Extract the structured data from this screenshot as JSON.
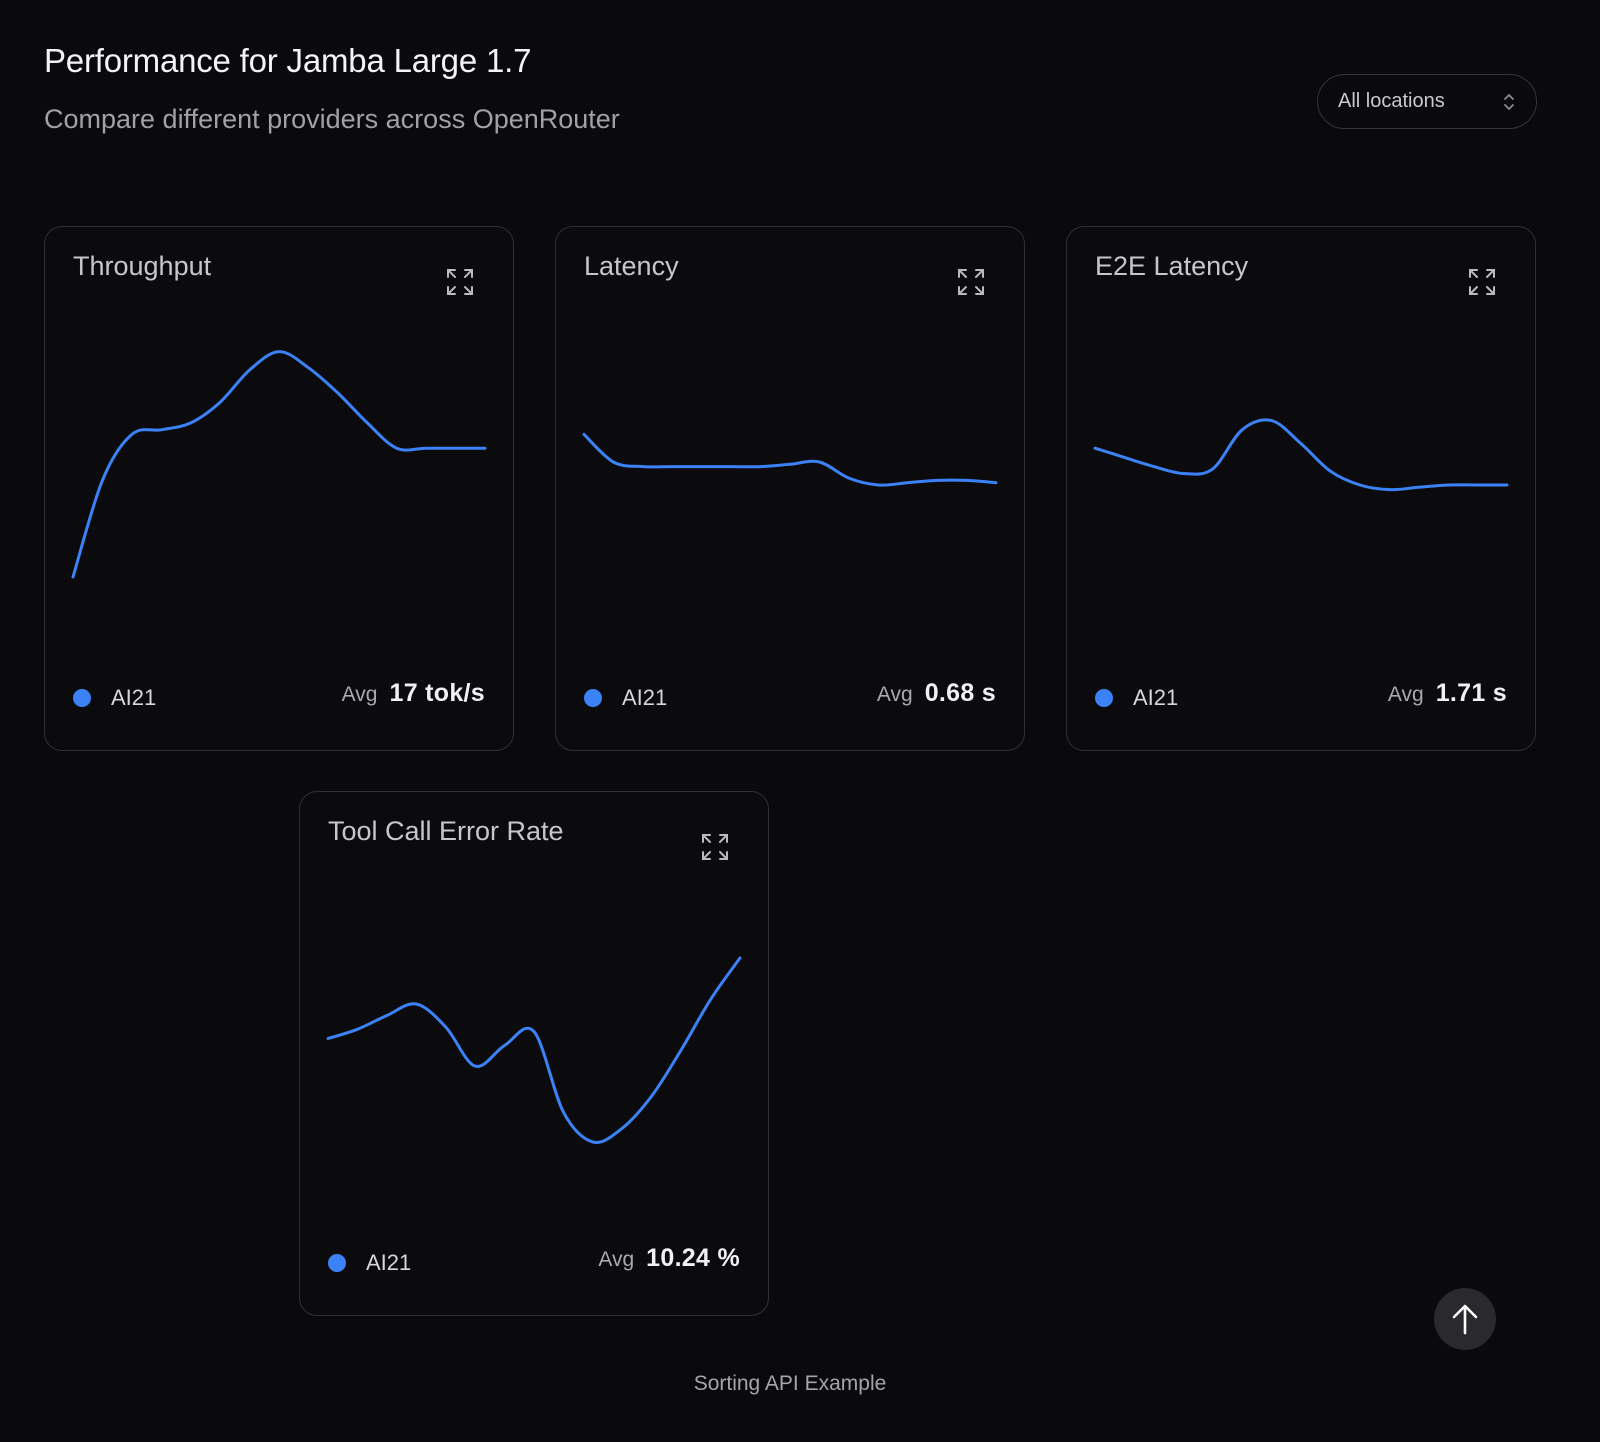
{
  "header": {
    "title": "Performance for Jamba Large 1.7",
    "subtitle": "Compare different providers across OpenRouter"
  },
  "location_select": {
    "selected": "All locations",
    "icon": "chevron-up-down-icon"
  },
  "accent_color": "#3b82f6",
  "cards": [
    {
      "title": "Throughput",
      "provider": "AI21",
      "avg_label": "Avg",
      "avg_value": "17 tok/s",
      "expand_icon": "expand-icon"
    },
    {
      "title": "Latency",
      "provider": "AI21",
      "avg_label": "Avg",
      "avg_value": "0.68 s",
      "expand_icon": "expand-icon"
    },
    {
      "title": "E2E Latency",
      "provider": "AI21",
      "avg_label": "Avg",
      "avg_value": "1.71 s",
      "expand_icon": "expand-icon"
    },
    {
      "title": "Tool Call Error Rate",
      "provider": "AI21",
      "avg_label": "Avg",
      "avg_value": "10.24 %",
      "expand_icon": "expand-icon"
    }
  ],
  "chart_data": [
    {
      "type": "line",
      "title": "Throughput",
      "series": [
        {
          "name": "AI21",
          "values": [
            0.0,
            0.42,
            0.62,
            0.64,
            0.67,
            0.76,
            0.9,
            0.98,
            0.91,
            0.8,
            0.67,
            0.56,
            0.56,
            0.56,
            0.56
          ]
        }
      ],
      "ylim": [
        0,
        1
      ]
    },
    {
      "type": "line",
      "title": "Latency",
      "series": [
        {
          "name": "AI21",
          "values": [
            0.62,
            0.5,
            0.48,
            0.48,
            0.48,
            0.48,
            0.48,
            0.49,
            0.5,
            0.43,
            0.4,
            0.41,
            0.42,
            0.42,
            0.41
          ]
        }
      ],
      "ylim": [
        0,
        1
      ]
    },
    {
      "type": "line",
      "title": "E2E Latency",
      "series": [
        {
          "name": "AI21",
          "values": [
            0.56,
            0.52,
            0.48,
            0.45,
            0.47,
            0.64,
            0.68,
            0.58,
            0.46,
            0.4,
            0.38,
            0.39,
            0.4,
            0.4,
            0.4
          ]
        }
      ],
      "ylim": [
        0,
        1
      ]
    },
    {
      "type": "line",
      "title": "Tool Call Error Rate",
      "series": [
        {
          "name": "AI21",
          "values": [
            0.45,
            0.49,
            0.55,
            0.6,
            0.5,
            0.33,
            0.42,
            0.48,
            0.13,
            0.0,
            0.06,
            0.2,
            0.4,
            0.62,
            0.8
          ]
        }
      ],
      "ylim": [
        0,
        1
      ]
    }
  ],
  "scroll_top": {
    "icon": "arrow-up-icon"
  },
  "footer": {
    "link_text": "Sorting API Example"
  }
}
